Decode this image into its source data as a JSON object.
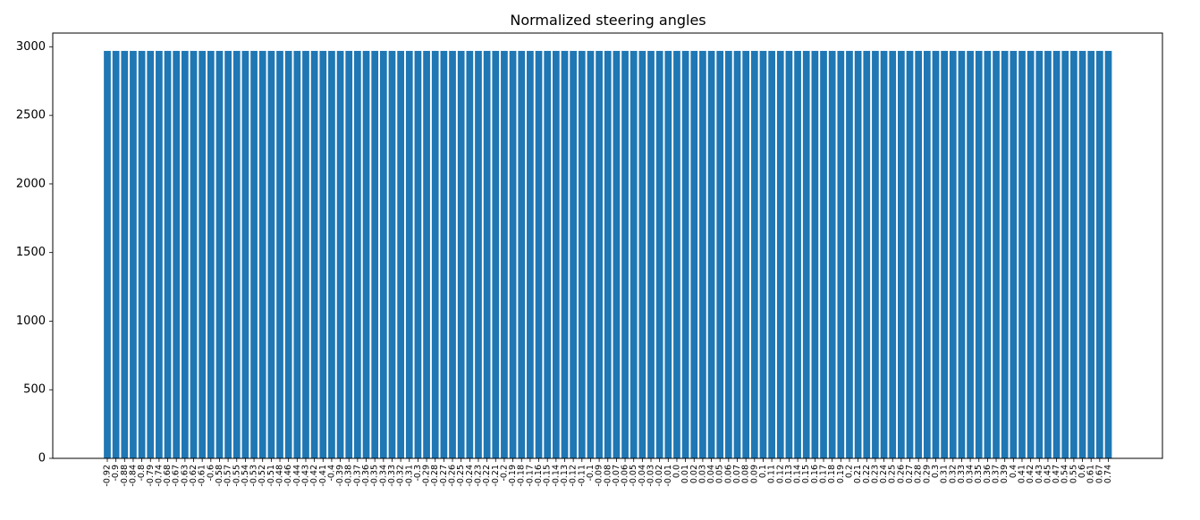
{
  "chart_data": {
    "type": "bar",
    "title": "Normalized steering angles",
    "xlabel": "",
    "ylabel": "",
    "ylim": [
      0,
      3100
    ],
    "yticks": [
      0,
      500,
      1000,
      1500,
      2000,
      2500,
      3000
    ],
    "bar_color": "#1f77b4",
    "grid": false,
    "categories": [
      "-0.92",
      "-0.9",
      "-0.88",
      "-0.84",
      "-0.8",
      "-0.79",
      "-0.74",
      "-0.68",
      "-0.67",
      "-0.63",
      "-0.62",
      "-0.61",
      "-0.6",
      "-0.58",
      "-0.57",
      "-0.55",
      "-0.54",
      "-0.53",
      "-0.52",
      "-0.51",
      "-0.48",
      "-0.46",
      "-0.44",
      "-0.43",
      "-0.42",
      "-0.41",
      "-0.4",
      "-0.39",
      "-0.38",
      "-0.37",
      "-0.36",
      "-0.35",
      "-0.34",
      "-0.33",
      "-0.32",
      "-0.31",
      "-0.3",
      "-0.29",
      "-0.28",
      "-0.27",
      "-0.26",
      "-0.25",
      "-0.24",
      "-0.23",
      "-0.22",
      "-0.21",
      "-0.2",
      "-0.19",
      "-0.18",
      "-0.17",
      "-0.16",
      "-0.15",
      "-0.14",
      "-0.13",
      "-0.12",
      "-0.11",
      "-0.1",
      "-0.09",
      "-0.08",
      "-0.07",
      "-0.06",
      "-0.05",
      "-0.04",
      "-0.03",
      "-0.02",
      "-0.01",
      "0.0",
      "0.01",
      "0.02",
      "0.03",
      "0.04",
      "0.05",
      "0.06",
      "0.07",
      "0.08",
      "0.09",
      "0.1",
      "0.11",
      "0.12",
      "0.13",
      "0.14",
      "0.15",
      "0.16",
      "0.17",
      "0.18",
      "0.19",
      "0.2",
      "0.21",
      "0.22",
      "0.23",
      "0.24",
      "0.25",
      "0.26",
      "0.27",
      "0.28",
      "0.29",
      "0.3",
      "0.31",
      "0.32",
      "0.33",
      "0.34",
      "0.35",
      "0.36",
      "0.37",
      "0.39",
      "0.4",
      "0.41",
      "0.42",
      "0.43",
      "0.45",
      "0.47",
      "0.54",
      "0.55",
      "0.6",
      "0.61",
      "0.67",
      "0.74"
    ],
    "value": 2970
  }
}
